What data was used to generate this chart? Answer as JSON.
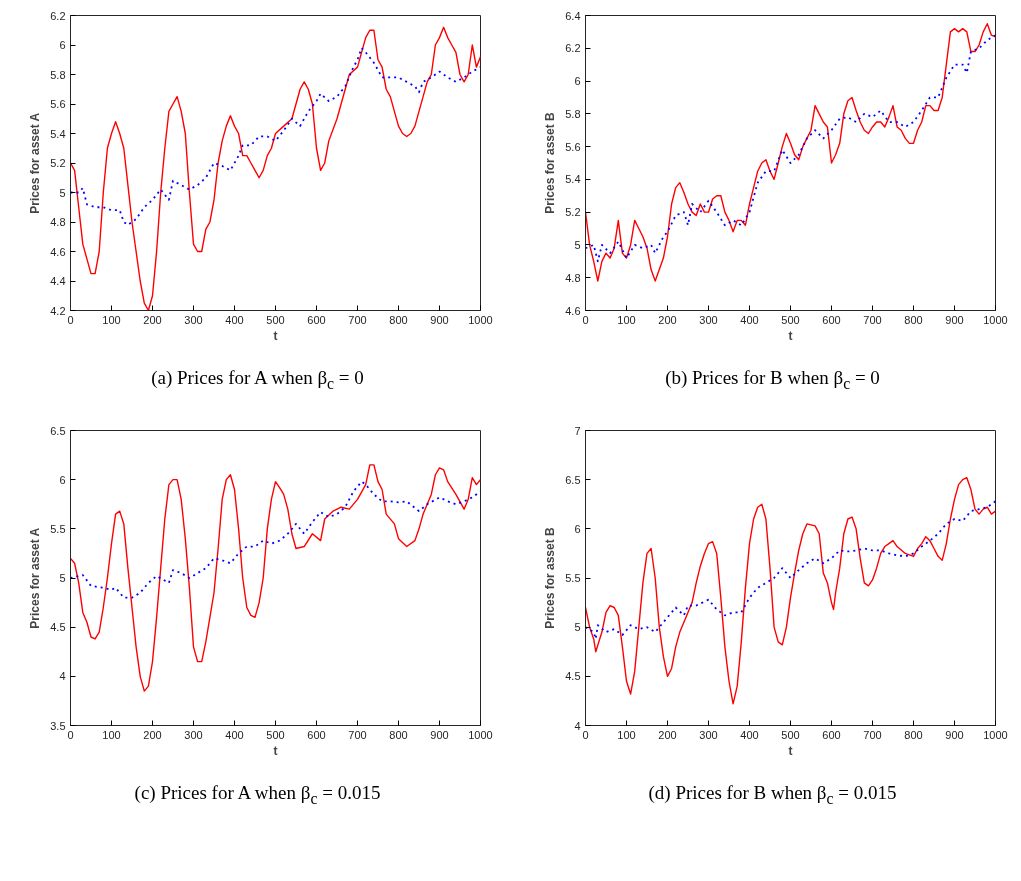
{
  "chart_data": [
    {
      "type": "line",
      "xlabel": "t",
      "ylabel": "Prices for asset A",
      "annotations": [
        "(a) Prices for A when β$_{c}$ = 0"
      ],
      "xlim": [
        0,
        1000
      ],
      "ylim": [
        4.2,
        6.2
      ],
      "xticks": [
        0,
        100,
        200,
        300,
        400,
        500,
        600,
        700,
        800,
        900,
        1000
      ],
      "yticks": [
        4.2,
        4.4,
        4.6,
        4.8,
        5,
        5.2,
        5.4,
        5.6,
        5.8,
        6,
        6.2
      ],
      "grid": false,
      "marker": "none",
      "series": [
        {
          "color": "#ff0000",
          "line_style": "solid",
          "x": [
            0,
            10,
            20,
            30,
            40,
            50,
            60,
            70,
            80,
            90,
            100,
            110,
            120,
            130,
            140,
            150,
            160,
            170,
            180,
            190,
            200,
            210,
            220,
            230,
            240,
            250,
            260,
            270,
            280,
            290,
            300,
            310,
            320,
            330,
            340,
            350,
            360,
            370,
            380,
            390,
            400,
            410,
            420,
            430,
            440,
            450,
            460,
            470,
            480,
            490,
            500,
            520,
            540,
            560,
            570,
            580,
            590,
            600,
            610,
            620,
            630,
            650,
            660,
            680,
            700,
            710,
            720,
            730,
            740,
            750,
            760,
            770,
            780,
            790,
            800,
            810,
            820,
            830,
            840,
            850,
            860,
            870,
            880,
            890,
            900,
            910,
            920,
            930,
            940,
            950,
            960,
            970,
            980,
            990,
            1000
          ],
          "values": [
            5.2,
            5.15,
            4.9,
            4.65,
            4.55,
            4.45,
            4.45,
            4.6,
            5.0,
            5.3,
            5.4,
            5.48,
            5.4,
            5.3,
            5.05,
            4.8,
            4.6,
            4.4,
            4.25,
            4.2,
            4.3,
            4.6,
            5.0,
            5.3,
            5.55,
            5.6,
            5.65,
            5.55,
            5.4,
            5.0,
            4.65,
            4.6,
            4.6,
            4.75,
            4.8,
            4.95,
            5.2,
            5.35,
            5.45,
            5.52,
            5.45,
            5.4,
            5.25,
            5.25,
            5.2,
            5.15,
            5.1,
            5.15,
            5.25,
            5.3,
            5.4,
            5.45,
            5.5,
            5.7,
            5.75,
            5.7,
            5.6,
            5.3,
            5.15,
            5.2,
            5.35,
            5.5,
            5.6,
            5.8,
            5.85,
            5.95,
            6.05,
            6.1,
            6.1,
            5.9,
            5.85,
            5.7,
            5.65,
            5.55,
            5.45,
            5.4,
            5.38,
            5.4,
            5.45,
            5.55,
            5.65,
            5.75,
            5.8,
            6.0,
            6.05,
            6.12,
            6.05,
            6.0,
            5.95,
            5.8,
            5.75,
            5.8,
            6.0,
            5.85,
            5.92
          ]
        },
        {
          "color": "#0000ff",
          "line_style": "dotted",
          "x": [
            0,
            20,
            30,
            40,
            60,
            80,
            100,
            120,
            130,
            140,
            160,
            180,
            200,
            220,
            240,
            250,
            270,
            290,
            310,
            330,
            350,
            370,
            390,
            410,
            420,
            440,
            460,
            480,
            500,
            520,
            540,
            560,
            580,
            600,
            610,
            630,
            650,
            670,
            690,
            700,
            710,
            720,
            740,
            760,
            780,
            800,
            820,
            840,
            850,
            860,
            880,
            900,
            920,
            940,
            960,
            980,
            1000
          ],
          "values": [
            5.0,
            5.0,
            5.03,
            4.92,
            4.9,
            4.9,
            4.88,
            4.88,
            4.8,
            4.78,
            4.82,
            4.9,
            4.95,
            5.02,
            4.95,
            5.08,
            5.05,
            5.02,
            5.05,
            5.1,
            5.2,
            5.18,
            5.15,
            5.25,
            5.32,
            5.32,
            5.38,
            5.38,
            5.35,
            5.42,
            5.5,
            5.45,
            5.55,
            5.62,
            5.67,
            5.62,
            5.65,
            5.72,
            5.85,
            5.9,
            5.98,
            5.95,
            5.88,
            5.78,
            5.78,
            5.78,
            5.75,
            5.72,
            5.68,
            5.75,
            5.78,
            5.82,
            5.78,
            5.75,
            5.78,
            5.82,
            5.85
          ]
        }
      ]
    },
    {
      "type": "line",
      "xlabel": "t",
      "ylabel": "Prices for asset B",
      "annotations": [
        "(b) Prices for B when β$_{c}$ = 0"
      ],
      "xlim": [
        0,
        1000
      ],
      "ylim": [
        4.6,
        6.4
      ],
      "xticks": [
        0,
        100,
        200,
        300,
        400,
        500,
        600,
        700,
        800,
        900,
        1000
      ],
      "yticks": [
        4.6,
        4.8,
        5,
        5.2,
        5.4,
        5.6,
        5.8,
        6,
        6.2,
        6.4
      ],
      "grid": false,
      "marker": "none",
      "series": [
        {
          "color": "#ff0000",
          "line_style": "solid",
          "x": [
            0,
            10,
            20,
            30,
            40,
            50,
            60,
            70,
            80,
            90,
            100,
            110,
            120,
            130,
            140,
            150,
            160,
            170,
            180,
            190,
            200,
            210,
            220,
            230,
            240,
            250,
            260,
            270,
            280,
            290,
            300,
            310,
            320,
            330,
            340,
            350,
            360,
            370,
            380,
            390,
            400,
            410,
            420,
            430,
            440,
            450,
            460,
            470,
            480,
            490,
            500,
            510,
            520,
            530,
            540,
            550,
            560,
            570,
            580,
            590,
            600,
            610,
            620,
            630,
            640,
            650,
            660,
            670,
            680,
            690,
            700,
            710,
            720,
            730,
            740,
            750,
            760,
            770,
            780,
            790,
            800,
            810,
            820,
            830,
            840,
            850,
            860,
            870,
            880,
            890,
            900,
            910,
            920,
            930,
            940,
            950,
            960,
            970,
            980,
            990,
            1000
          ],
          "values": [
            5.2,
            5.0,
            4.9,
            4.78,
            4.9,
            4.95,
            4.92,
            4.98,
            5.15,
            4.95,
            4.92,
            5.0,
            5.15,
            5.1,
            5.05,
            4.98,
            4.85,
            4.78,
            4.85,
            4.92,
            5.05,
            5.25,
            5.35,
            5.38,
            5.32,
            5.25,
            5.2,
            5.18,
            5.25,
            5.2,
            5.2,
            5.28,
            5.3,
            5.3,
            5.2,
            5.15,
            5.08,
            5.15,
            5.15,
            5.12,
            5.25,
            5.35,
            5.45,
            5.5,
            5.52,
            5.45,
            5.4,
            5.5,
            5.6,
            5.68,
            5.62,
            5.55,
            5.52,
            5.6,
            5.65,
            5.7,
            5.85,
            5.8,
            5.75,
            5.72,
            5.5,
            5.55,
            5.62,
            5.8,
            5.88,
            5.9,
            5.82,
            5.75,
            5.7,
            5.68,
            5.72,
            5.75,
            5.75,
            5.72,
            5.78,
            5.85,
            5.72,
            5.7,
            5.65,
            5.62,
            5.62,
            5.7,
            5.75,
            5.85,
            5.85,
            5.82,
            5.82,
            5.9,
            6.1,
            6.3,
            6.32,
            6.3,
            6.32,
            6.3,
            6.18,
            6.18,
            6.22,
            6.3,
            6.35,
            6.28,
            6.27
          ]
        },
        {
          "color": "#0000ff",
          "line_style": "dotted",
          "x": [
            0,
            20,
            30,
            40,
            60,
            80,
            100,
            120,
            140,
            160,
            170,
            190,
            200,
            220,
            240,
            250,
            260,
            280,
            300,
            320,
            340,
            360,
            380,
            400,
            420,
            440,
            460,
            480,
            500,
            520,
            540,
            560,
            580,
            600,
            620,
            640,
            660,
            680,
            700,
            720,
            740,
            760,
            780,
            800,
            820,
            840,
            860,
            880,
            900,
            920,
            930,
            940,
            960,
            980,
            1000
          ],
          "values": [
            4.98,
            5.0,
            4.9,
            5.0,
            4.95,
            5.02,
            4.92,
            5.0,
            4.98,
            5.0,
            4.95,
            5.05,
            5.08,
            5.18,
            5.2,
            5.12,
            5.25,
            5.2,
            5.27,
            5.2,
            5.12,
            5.15,
            5.12,
            5.2,
            5.38,
            5.45,
            5.45,
            5.58,
            5.5,
            5.55,
            5.65,
            5.7,
            5.65,
            5.7,
            5.77,
            5.78,
            5.75,
            5.8,
            5.78,
            5.82,
            5.75,
            5.75,
            5.72,
            5.75,
            5.82,
            5.9,
            5.9,
            6.02,
            6.1,
            6.1,
            6.05,
            6.18,
            6.2,
            6.25,
            6.28
          ]
        }
      ]
    },
    {
      "type": "line",
      "xlabel": "t",
      "ylabel": "Prices for asset A",
      "annotations": [
        "(c) Prices for A when β$_{c}$ = 0.015"
      ],
      "xlim": [
        0,
        1000
      ],
      "ylim": [
        3.5,
        6.5
      ],
      "xticks": [
        0,
        100,
        200,
        300,
        400,
        500,
        600,
        700,
        800,
        900,
        1000
      ],
      "yticks": [
        3.5,
        4,
        4.5,
        5,
        5.5,
        6,
        6.5
      ],
      "grid": false,
      "marker": "none",
      "series": [
        {
          "color": "#ff0000",
          "line_style": "solid",
          "x": [
            0,
            10,
            20,
            30,
            40,
            50,
            60,
            70,
            80,
            90,
            100,
            110,
            120,
            130,
            140,
            150,
            160,
            170,
            180,
            190,
            200,
            210,
            220,
            230,
            240,
            250,
            260,
            270,
            280,
            290,
            300,
            310,
            320,
            330,
            340,
            350,
            360,
            370,
            380,
            390,
            400,
            410,
            420,
            430,
            440,
            450,
            460,
            470,
            480,
            490,
            500,
            510,
            520,
            530,
            540,
            550,
            570,
            590,
            610,
            620,
            640,
            660,
            680,
            700,
            720,
            730,
            740,
            750,
            760,
            770,
            790,
            800,
            820,
            840,
            850,
            860,
            880,
            890,
            900,
            910,
            920,
            940,
            960,
            970,
            980,
            990,
            1000
          ],
          "values": [
            5.2,
            5.15,
            4.95,
            4.65,
            4.55,
            4.4,
            4.38,
            4.45,
            4.7,
            5.0,
            5.35,
            5.65,
            5.68,
            5.55,
            5.1,
            4.7,
            4.3,
            4.0,
            3.85,
            3.9,
            4.15,
            4.6,
            5.1,
            5.6,
            5.95,
            6.0,
            6.0,
            5.8,
            5.4,
            4.9,
            4.3,
            4.15,
            4.15,
            4.35,
            4.6,
            4.85,
            5.3,
            5.8,
            6.0,
            6.05,
            5.9,
            5.5,
            5.0,
            4.7,
            4.62,
            4.6,
            4.75,
            5.0,
            5.5,
            5.8,
            5.98,
            5.92,
            5.85,
            5.7,
            5.45,
            5.3,
            5.32,
            5.45,
            5.38,
            5.6,
            5.68,
            5.72,
            5.7,
            5.8,
            5.95,
            6.15,
            6.15,
            5.98,
            5.9,
            5.65,
            5.55,
            5.4,
            5.32,
            5.38,
            5.5,
            5.65,
            5.85,
            6.05,
            6.12,
            6.1,
            5.98,
            5.85,
            5.7,
            5.8,
            6.02,
            5.95,
            6.0
          ]
        },
        {
          "color": "#0000ff",
          "line_style": "dotted",
          "x": [
            0,
            30,
            50,
            80,
            100,
            110,
            130,
            150,
            170,
            190,
            210,
            240,
            250,
            270,
            290,
            310,
            330,
            350,
            370,
            390,
            410,
            430,
            450,
            470,
            490,
            510,
            530,
            550,
            570,
            590,
            610,
            630,
            650,
            670,
            690,
            710,
            720,
            740,
            760,
            780,
            800,
            820,
            850,
            870,
            900,
            920,
            940,
            960,
            980,
            1000
          ],
          "values": [
            5.0,
            5.03,
            4.92,
            4.9,
            4.88,
            4.9,
            4.8,
            4.8,
            4.85,
            4.95,
            5.02,
            4.95,
            5.08,
            5.05,
            5.0,
            5.05,
            5.1,
            5.2,
            5.18,
            5.15,
            5.25,
            5.32,
            5.32,
            5.38,
            5.35,
            5.38,
            5.45,
            5.55,
            5.45,
            5.57,
            5.67,
            5.62,
            5.65,
            5.72,
            5.88,
            5.98,
            5.95,
            5.85,
            5.78,
            5.78,
            5.77,
            5.78,
            5.68,
            5.75,
            5.82,
            5.78,
            5.75,
            5.78,
            5.82,
            5.88
          ]
        }
      ]
    },
    {
      "type": "line",
      "xlabel": "t",
      "ylabel": "Prices for asset B",
      "annotations": [
        "(d) Prices for B when β$_{c}$ = 0.015"
      ],
      "xlim": [
        0,
        1000
      ],
      "ylim": [
        4,
        7
      ],
      "xticks": [
        0,
        100,
        200,
        300,
        400,
        500,
        600,
        700,
        800,
        900,
        1000
      ],
      "yticks": [
        4,
        4.5,
        5,
        5.5,
        6,
        6.5,
        7
      ],
      "grid": false,
      "marker": "none",
      "series": [
        {
          "color": "#ff0000",
          "line_style": "solid",
          "x": [
            0,
            10,
            20,
            25,
            40,
            50,
            60,
            70,
            80,
            90,
            100,
            110,
            120,
            130,
            140,
            150,
            160,
            170,
            180,
            190,
            200,
            210,
            220,
            230,
            240,
            260,
            270,
            280,
            290,
            300,
            310,
            320,
            330,
            340,
            350,
            360,
            370,
            380,
            390,
            400,
            410,
            420,
            430,
            440,
            450,
            460,
            470,
            480,
            490,
            500,
            510,
            520,
            530,
            540,
            560,
            570,
            580,
            590,
            600,
            605,
            610,
            620,
            630,
            640,
            650,
            660,
            670,
            680,
            690,
            700,
            710,
            720,
            730,
            740,
            750,
            760,
            780,
            800,
            810,
            820,
            830,
            840,
            850,
            860,
            870,
            880,
            890,
            900,
            910,
            920,
            930,
            940,
            950,
            960,
            970,
            980,
            990,
            1000
          ],
          "values": [
            5.2,
            5.0,
            4.88,
            4.75,
            4.95,
            5.15,
            5.22,
            5.2,
            5.12,
            4.8,
            4.45,
            4.32,
            4.55,
            5.0,
            5.45,
            5.75,
            5.8,
            5.5,
            5.0,
            4.7,
            4.5,
            4.58,
            4.8,
            4.95,
            5.05,
            5.25,
            5.45,
            5.62,
            5.75,
            5.85,
            5.87,
            5.75,
            5.3,
            4.8,
            4.45,
            4.22,
            4.4,
            4.85,
            5.4,
            5.85,
            6.1,
            6.22,
            6.25,
            6.1,
            5.6,
            5.0,
            4.85,
            4.82,
            5.0,
            5.3,
            5.55,
            5.78,
            5.95,
            6.05,
            6.03,
            5.95,
            5.55,
            5.45,
            5.25,
            5.18,
            5.35,
            5.6,
            5.95,
            6.1,
            6.12,
            6.0,
            5.7,
            5.45,
            5.42,
            5.48,
            5.6,
            5.75,
            5.82,
            5.85,
            5.88,
            5.82,
            5.75,
            5.72,
            5.8,
            5.85,
            5.92,
            5.88,
            5.8,
            5.72,
            5.68,
            5.85,
            6.1,
            6.3,
            6.45,
            6.5,
            6.52,
            6.4,
            6.2,
            6.15,
            6.2,
            6.22,
            6.15,
            6.18
          ]
        },
        {
          "color": "#0000ff",
          "line_style": "dotted",
          "x": [
            0,
            20,
            25,
            30,
            50,
            70,
            90,
            110,
            130,
            150,
            170,
            190,
            210,
            220,
            240,
            250,
            270,
            300,
            320,
            340,
            360,
            380,
            400,
            420,
            440,
            460,
            480,
            500,
            520,
            540,
            560,
            580,
            600,
            620,
            640,
            660,
            680,
            700,
            720,
            740,
            760,
            780,
            800,
            820,
            840,
            860,
            880,
            900,
            920,
            940,
            960,
            980,
            1000
          ],
          "values": [
            5.0,
            4.95,
            4.88,
            5.02,
            4.95,
            4.98,
            4.92,
            5.02,
            4.98,
            5.0,
            4.95,
            5.05,
            5.15,
            5.2,
            5.12,
            5.22,
            5.22,
            5.28,
            5.18,
            5.12,
            5.15,
            5.15,
            5.3,
            5.4,
            5.45,
            5.5,
            5.6,
            5.5,
            5.58,
            5.65,
            5.7,
            5.65,
            5.7,
            5.78,
            5.77,
            5.78,
            5.8,
            5.78,
            5.78,
            5.75,
            5.73,
            5.72,
            5.75,
            5.82,
            5.88,
            5.95,
            6.05,
            6.1,
            6.08,
            6.18,
            6.2,
            6.22,
            6.28
          ]
        }
      ]
    }
  ]
}
